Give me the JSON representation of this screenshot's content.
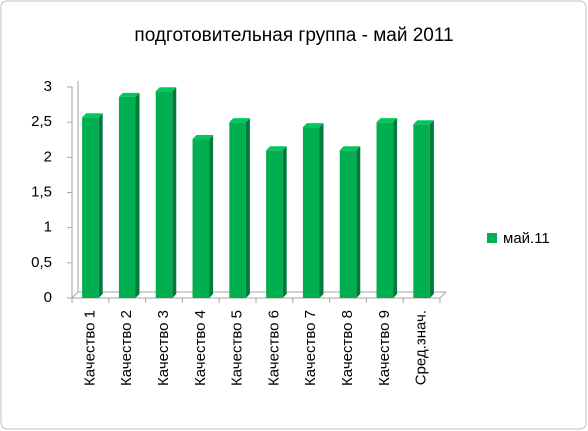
{
  "chart_data": {
    "type": "bar",
    "title": "подготовительная группа - май 2011",
    "categories": [
      "Качество 1",
      "Качество 2",
      "Качество 3",
      "Качество 4",
      "Качество 5",
      "Качество 6",
      "Качество 7",
      "Качество 8",
      "Качество 9",
      "Сред.знач."
    ],
    "series": [
      {
        "name": "май.11",
        "color": "#00b050",
        "values": [
          2.57,
          2.86,
          2.94,
          2.26,
          2.5,
          2.1,
          2.43,
          2.1,
          2.5,
          2.47
        ]
      }
    ],
    "ylim": [
      0,
      3
    ],
    "yticks": [
      0,
      {
        "value": 0.5,
        "label": "0,5"
      },
      1,
      {
        "value": 1.5,
        "label": "1,5"
      },
      2,
      {
        "value": 2.5,
        "label": "2,5"
      },
      3
    ],
    "grid": false,
    "legend": "right"
  }
}
